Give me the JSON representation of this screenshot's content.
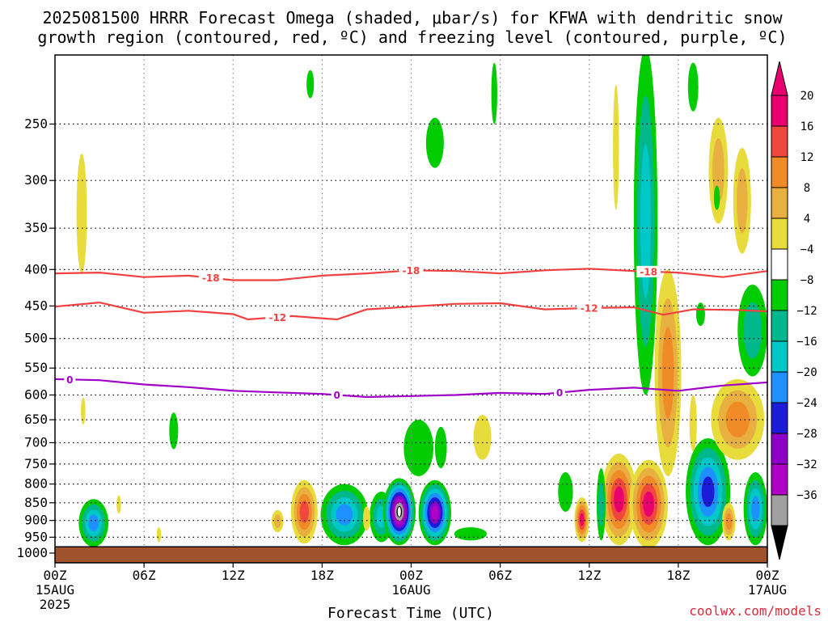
{
  "title": {
    "line1": "2025081500 HRRR Forecast Omega (shaded, μbar/s) for KFWA with dendritic snow",
    "line2": "growth region (contoured, red, ºC) and freezing level (contoured, purple, ºC)"
  },
  "credit": "coolwx.com/models",
  "chart_data": {
    "type": "heatmap",
    "xlabel": "Forecast Time (UTC)",
    "ylabel": "",
    "y_scale": "log-pressure",
    "ylim": [
      1000,
      200
    ],
    "xlim_hours": [
      0,
      48
    ],
    "y_ticks": [
      250,
      300,
      350,
      400,
      450,
      500,
      550,
      600,
      650,
      700,
      750,
      800,
      850,
      900,
      950,
      1000
    ],
    "x_ticks": [
      {
        "hour": 0,
        "label": "00Z",
        "sub1": "15AUG",
        "sub2": "2025"
      },
      {
        "hour": 6,
        "label": "06Z",
        "sub1": "",
        "sub2": ""
      },
      {
        "hour": 12,
        "label": "12Z",
        "sub1": "",
        "sub2": ""
      },
      {
        "hour": 18,
        "label": "18Z",
        "sub1": "",
        "sub2": ""
      },
      {
        "hour": 24,
        "label": "00Z",
        "sub1": "16AUG",
        "sub2": ""
      },
      {
        "hour": 30,
        "label": "06Z",
        "sub1": "",
        "sub2": ""
      },
      {
        "hour": 36,
        "label": "12Z",
        "sub1": "",
        "sub2": ""
      },
      {
        "hour": 42,
        "label": "18Z",
        "sub1": "",
        "sub2": ""
      },
      {
        "hour": 48,
        "label": "00Z",
        "sub1": "17AUG",
        "sub2": ""
      }
    ],
    "grid": true,
    "ground_level_hpa": 980,
    "colorbar": {
      "labels": [
        20,
        16,
        12,
        8,
        4,
        -4,
        -8,
        -12,
        -16,
        -20,
        -24,
        -28,
        -32,
        -36
      ],
      "bins": [
        {
          "color": "#e8006e"
        },
        {
          "color": "#f0483c"
        },
        {
          "color": "#f08c28"
        },
        {
          "color": "#e8b040"
        },
        {
          "color": "#e8dc3c"
        },
        {
          "color": "#ffffff"
        },
        {
          "color": "#00cc00"
        },
        {
          "color": "#00b88c"
        },
        {
          "color": "#00c8c8"
        },
        {
          "color": "#1e90ff"
        },
        {
          "color": "#1c1cd8"
        },
        {
          "color": "#8c00c8"
        },
        {
          "color": "#b000c8"
        },
        {
          "color": "#a0a0a0"
        }
      ],
      "top_triangle_color": "#e8006e",
      "bottom_triangle_color": "#000000"
    },
    "contours": [
      {
        "level": "-18",
        "color": "#f04040",
        "points": [
          [
            0,
            405
          ],
          [
            3,
            404
          ],
          [
            6,
            410
          ],
          [
            9,
            408
          ],
          [
            12,
            414
          ],
          [
            15,
            414
          ],
          [
            18,
            408
          ],
          [
            21,
            405
          ],
          [
            24,
            401
          ],
          [
            27,
            402
          ],
          [
            30,
            405
          ],
          [
            33,
            401
          ],
          [
            36,
            399
          ],
          [
            39,
            402
          ],
          [
            42,
            404
          ],
          [
            45,
            410
          ],
          [
            48,
            402
          ]
        ],
        "label_hours": [
          10.5,
          24,
          40
        ]
      },
      {
        "level": "-12",
        "color": "#f04040",
        "points": [
          [
            0,
            451
          ],
          [
            3,
            445
          ],
          [
            6,
            460
          ],
          [
            9,
            457
          ],
          [
            12,
            462
          ],
          [
            13,
            470
          ],
          [
            16,
            465
          ],
          [
            19,
            470
          ],
          [
            21,
            455
          ],
          [
            24,
            451
          ],
          [
            27,
            447
          ],
          [
            30,
            446
          ],
          [
            33,
            455
          ],
          [
            36,
            453
          ],
          [
            39,
            452
          ],
          [
            41,
            463
          ],
          [
            43,
            455
          ],
          [
            46,
            456
          ],
          [
            48,
            458
          ]
        ],
        "label_hours": [
          15,
          36
        ]
      },
      {
        "level": "0",
        "color": "#a000c8",
        "points": [
          [
            0,
            570
          ],
          [
            3,
            572
          ],
          [
            6,
            580
          ],
          [
            9,
            585
          ],
          [
            12,
            592
          ],
          [
            15,
            595
          ],
          [
            18,
            598
          ],
          [
            21,
            604
          ],
          [
            24,
            602
          ],
          [
            27,
            600
          ],
          [
            30,
            596
          ],
          [
            33,
            598
          ],
          [
            36,
            590
          ],
          [
            39,
            586
          ],
          [
            42,
            592
          ],
          [
            45,
            582
          ],
          [
            48,
            576
          ]
        ],
        "label_hours": [
          1,
          19,
          34
        ]
      }
    ],
    "shaded_regions": [
      {
        "hour": 1.8,
        "hw": 0.35,
        "p_top": 275,
        "p_bot": 405,
        "max_value": 6
      },
      {
        "hour": 17.2,
        "hw": 0.25,
        "p_top": 210,
        "p_bot": 230,
        "max_value": -6
      },
      {
        "hour": 29.6,
        "hw": 0.2,
        "p_top": 205,
        "p_bot": 250,
        "max_value": -6
      },
      {
        "hour": 25.6,
        "hw": 0.6,
        "p_top": 245,
        "p_bot": 288,
        "max_value": -6
      },
      {
        "hour": 1.9,
        "hw": 0.15,
        "p_top": 605,
        "p_bot": 660,
        "max_value": 6
      },
      {
        "hour": 8.0,
        "hw": 0.3,
        "p_top": 635,
        "p_bot": 715,
        "max_value": -6
      },
      {
        "hour": 4.3,
        "hw": 0.15,
        "p_top": 830,
        "p_bot": 880,
        "max_value": 6
      },
      {
        "hour": 7.0,
        "hw": 0.15,
        "p_top": 920,
        "p_bot": 965,
        "max_value": 6
      },
      {
        "hour": 2.6,
        "hw": 1.0,
        "p_top": 840,
        "p_bot": 980,
        "max_value": -16
      },
      {
        "hour": 15.0,
        "hw": 0.4,
        "p_top": 870,
        "p_bot": 935,
        "max_value": 10
      },
      {
        "hour": 16.8,
        "hw": 0.9,
        "p_top": 790,
        "p_bot": 970,
        "max_value": 18
      },
      {
        "hour": 19.5,
        "hw": 1.6,
        "p_top": 800,
        "p_bot": 975,
        "max_value": -18
      },
      {
        "hour": 22.0,
        "hw": 0.8,
        "p_top": 820,
        "p_bot": 965,
        "max_value": -12
      },
      {
        "hour": 21.0,
        "hw": 0.25,
        "p_top": 860,
        "p_bot": 930,
        "max_value": 6
      },
      {
        "hour": 23.2,
        "hw": 1.1,
        "p_top": 785,
        "p_bot": 975,
        "max_value": -36
      },
      {
        "hour": 25.6,
        "hw": 1.1,
        "p_top": 790,
        "p_bot": 975,
        "max_value": -30
      },
      {
        "hour": 28.0,
        "hw": 1.1,
        "p_top": 920,
        "p_bot": 960,
        "max_value": -6
      },
      {
        "hour": 1.0,
        "hw": 0.0,
        "p_top": 0,
        "p_bot": 0,
        "max_value": 0
      },
      {
        "hour": 24.5,
        "hw": 1.0,
        "p_top": 650,
        "p_bot": 780,
        "max_value": -6
      },
      {
        "hour": 26.0,
        "hw": 0.4,
        "p_top": 665,
        "p_bot": 760,
        "max_value": -6
      },
      {
        "hour": 28.8,
        "hw": 0.6,
        "p_top": 640,
        "p_bot": 740,
        "max_value": 6
      },
      {
        "hour": 34.4,
        "hw": 0.5,
        "p_top": 770,
        "p_bot": 875,
        "max_value": -6
      },
      {
        "hour": 35.5,
        "hw": 0.5,
        "p_top": 835,
        "p_bot": 965,
        "max_value": 20
      },
      {
        "hour": 38.0,
        "hw": 1.2,
        "p_top": 725,
        "p_bot": 975,
        "max_value": 22
      },
      {
        "hour": 36.8,
        "hw": 0.3,
        "p_top": 760,
        "p_bot": 960,
        "max_value": -10
      },
      {
        "hour": 40.0,
        "hw": 1.3,
        "p_top": 740,
        "p_bot": 985,
        "max_value": 22
      },
      {
        "hour": 41.3,
        "hw": 0.9,
        "p_top": 400,
        "p_bot": 780,
        "max_value": 12
      },
      {
        "hour": 39.8,
        "hw": 0.8,
        "p_top": 195,
        "p_bot": 600,
        "max_value": -14
      },
      {
        "hour": 37.8,
        "hw": 0.2,
        "p_top": 220,
        "p_bot": 330,
        "max_value": 6
      },
      {
        "hour": 43.0,
        "hw": 0.35,
        "p_top": 205,
        "p_bot": 240,
        "max_value": -6
      },
      {
        "hour": 43.0,
        "hw": 0.25,
        "p_top": 600,
        "p_bot": 720,
        "max_value": 6
      },
      {
        "hour": 44.0,
        "hw": 1.5,
        "p_top": 690,
        "p_bot": 975,
        "max_value": -22
      },
      {
        "hour": 45.4,
        "hw": 0.45,
        "p_top": 850,
        "p_bot": 960,
        "max_value": 12
      },
      {
        "hour": 47.2,
        "hw": 0.8,
        "p_top": 770,
        "p_bot": 975,
        "max_value": -16
      },
      {
        "hour": 44.7,
        "hw": 0.65,
        "p_top": 245,
        "p_bot": 345,
        "max_value": 8
      },
      {
        "hour": 46.3,
        "hw": 0.6,
        "p_top": 270,
        "p_bot": 380,
        "max_value": 10
      },
      {
        "hour": 43.5,
        "hw": 0.3,
        "p_top": 445,
        "p_bot": 480,
        "max_value": -6
      },
      {
        "hour": 47.0,
        "hw": 1.0,
        "p_top": 420,
        "p_bot": 565,
        "max_value": -10
      },
      {
        "hour": 46.0,
        "hw": 1.8,
        "p_top": 570,
        "p_bot": 740,
        "max_value": 12
      },
      {
        "hour": 44.6,
        "hw": 0.2,
        "p_top": 305,
        "p_bot": 330,
        "max_value": -6
      },
      {
        "hour": 32.5,
        "hw": 0.0,
        "p_top": 0,
        "p_bot": 0,
        "max_value": 0
      }
    ]
  }
}
